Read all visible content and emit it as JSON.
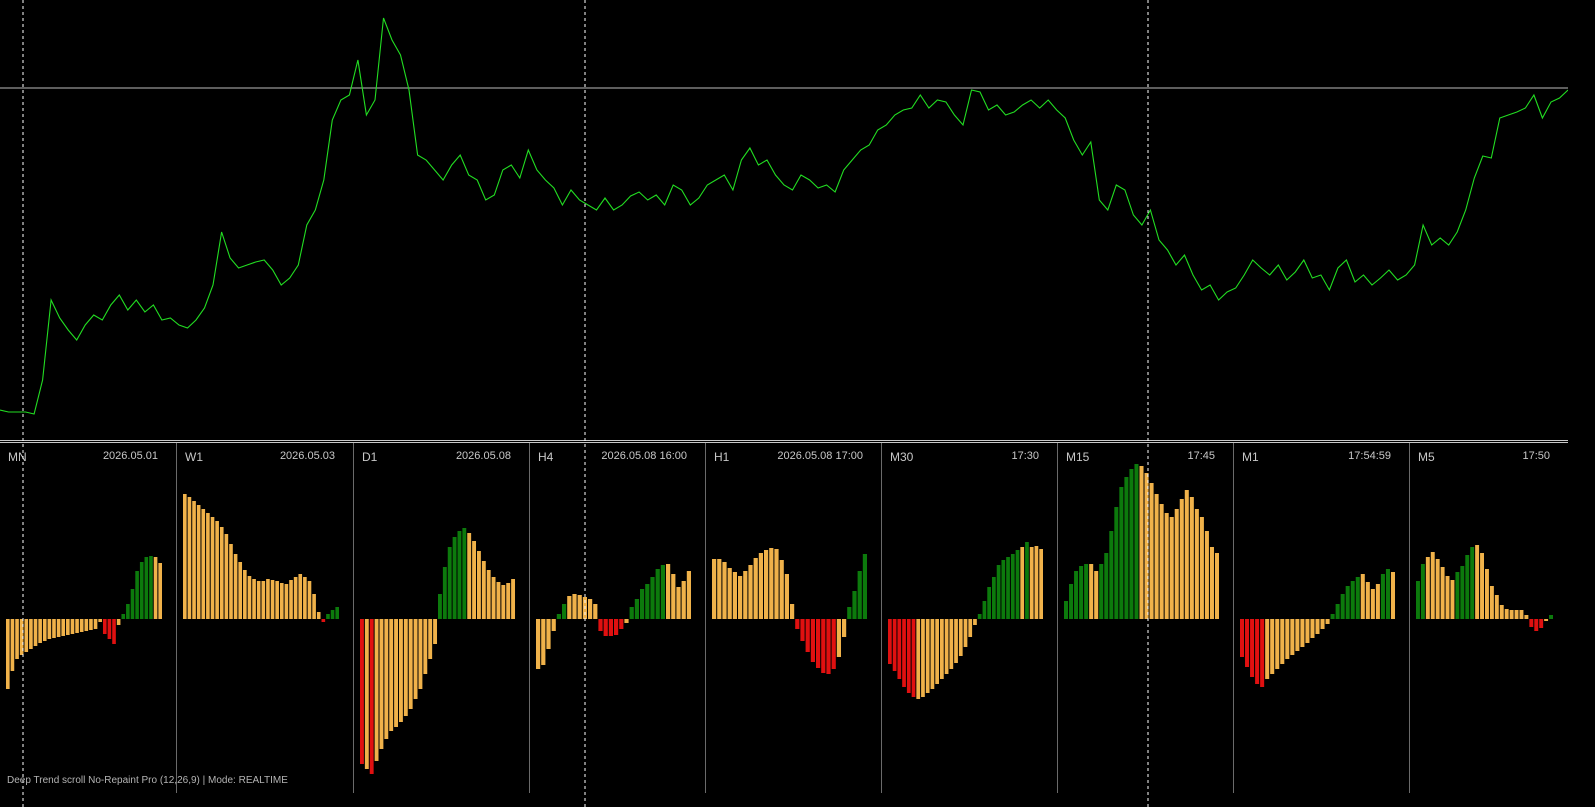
{
  "indicator": {
    "footer": "Deep Trend scroll No-Repaint Pro (12,26,9) | Mode: REALTIME"
  },
  "colors": {
    "background": "#000000",
    "price_line": "#22dd22",
    "bull": "#0c7a0c",
    "neutral": "#f0b24a",
    "bear": "#e01010",
    "grid": "#d0d0d0",
    "text": "#c8c8c8"
  },
  "panels": [
    {
      "timeframe": "MN",
      "date": "2026.05.01"
    },
    {
      "timeframe": "W1",
      "date": "2026.05.03"
    },
    {
      "timeframe": "D1",
      "date": "2026.05.08"
    },
    {
      "timeframe": "H4",
      "date": "2026.05.08 16:00"
    },
    {
      "timeframe": "H1",
      "date": "2026.05.08 17:00"
    },
    {
      "timeframe": "M30",
      "date": "17:30"
    },
    {
      "timeframe": "M15",
      "date": "17:45"
    },
    {
      "timeframe": "M1",
      "date": "17:54:59"
    },
    {
      "timeframe": "M5",
      "date": "17:50"
    }
  ],
  "chart_data": [
    {
      "type": "line",
      "series": [
        {
          "values": [
            410,
            412,
            412,
            412,
            414,
            380,
            300,
            318,
            330,
            340,
            325,
            315,
            320,
            305,
            295,
            310,
            300,
            312,
            305,
            320,
            318,
            325,
            328,
            320,
            308,
            285,
            232,
            258,
            268,
            265,
            262,
            260,
            270,
            285,
            278,
            265,
            225,
            210,
            180,
            120,
            100,
            95,
            60,
            115,
            100,
            18,
            40,
            55,
            90,
            155,
            160,
            170,
            180,
            165,
            155,
            175,
            180,
            200,
            195,
            170,
            165,
            178,
            150,
            170,
            180,
            188,
            205,
            190,
            200,
            205,
            210,
            198,
            210,
            205,
            196,
            192,
            200,
            195,
            205,
            185,
            190,
            205,
            198,
            185,
            180,
            175,
            190,
            160,
            148,
            165,
            160,
            175,
            185,
            190,
            175,
            180,
            188,
            185,
            192,
            170,
            160,
            150,
            145,
            130,
            125,
            115,
            110,
            108,
            95,
            108,
            100,
            102,
            115,
            125,
            90,
            92,
            110,
            105,
            115,
            112,
            105,
            100,
            108,
            100,
            110,
            118,
            140,
            155,
            142,
            200,
            210,
            185,
            190,
            215,
            225,
            210,
            240,
            250,
            265,
            255,
            275,
            290,
            285,
            300,
            292,
            288,
            275,
            260,
            268,
            275,
            265,
            280,
            272,
            260,
            278,
            275,
            290,
            268,
            260,
            282,
            275,
            285,
            278,
            270,
            280,
            275,
            265,
            225,
            245,
            238,
            245,
            232,
            210,
            178,
            156,
            158,
            118,
            115,
            112,
            108,
            95,
            118,
            102,
            98,
            90
          ]
        }
      ]
    },
    {
      "type": "bar",
      "timeframe": "MN",
      "values": [
        -70,
        -52,
        -40,
        -36,
        -33,
        -30,
        -27,
        -24,
        -22,
        -20,
        -19,
        -18,
        -17,
        -16,
        -15,
        -14,
        -13,
        -12,
        -11,
        -10,
        -3,
        -15,
        -20,
        -25,
        -6,
        5,
        15,
        30,
        48,
        57,
        62,
        63,
        62,
        56
      ],
      "colors": [
        "n",
        "n",
        "n",
        "n",
        "n",
        "n",
        "n",
        "n",
        "n",
        "n",
        "n",
        "n",
        "n",
        "n",
        "n",
        "n",
        "n",
        "n",
        "n",
        "n",
        "n",
        "r",
        "r",
        "r",
        "n",
        "g",
        "g",
        "g",
        "g",
        "g",
        "g",
        "g",
        "n",
        "n"
      ]
    },
    {
      "type": "bar",
      "timeframe": "W1",
      "values": [
        125,
        122,
        118,
        114,
        110,
        106,
        102,
        98,
        92,
        85,
        75,
        65,
        57,
        49,
        43,
        40,
        38,
        38,
        40,
        39,
        38,
        36,
        35,
        39,
        42,
        45,
        42,
        38,
        25,
        7,
        -3,
        5,
        9,
        12
      ],
      "colors": [
        "n",
        "n",
        "n",
        "n",
        "n",
        "n",
        "n",
        "n",
        "n",
        "n",
        "n",
        "n",
        "n",
        "n",
        "n",
        "n",
        "n",
        "n",
        "n",
        "n",
        "n",
        "n",
        "n",
        "n",
        "n",
        "n",
        "n",
        "n",
        "n",
        "n",
        "r",
        "g",
        "g",
        "g"
      ]
    },
    {
      "type": "bar",
      "timeframe": "D1",
      "values": [
        -145,
        -150,
        -155,
        -142,
        -130,
        -120,
        -112,
        -108,
        -103,
        -97,
        -90,
        -80,
        -70,
        -55,
        -40,
        -25,
        25,
        52,
        72,
        82,
        88,
        91,
        86,
        78,
        68,
        58,
        49,
        42,
        37,
        34,
        36,
        40
      ],
      "colors": [
        "r",
        "n",
        "r",
        "n",
        "n",
        "n",
        "n",
        "n",
        "n",
        "n",
        "n",
        "n",
        "n",
        "n",
        "n",
        "n",
        "g",
        "g",
        "g",
        "g",
        "g",
        "g",
        "n",
        "n",
        "n",
        "n",
        "n",
        "n",
        "n",
        "n",
        "n",
        "n"
      ]
    },
    {
      "type": "bar",
      "timeframe": "H4",
      "values": [
        -50,
        -46,
        -30,
        -12,
        5,
        15,
        23,
        25,
        24,
        22,
        20,
        15,
        -12,
        -17,
        -17,
        -16,
        -10,
        -4,
        12,
        20,
        30,
        35,
        42,
        50,
        54,
        55,
        45,
        32,
        38,
        48
      ],
      "colors": [
        "n",
        "n",
        "n",
        "n",
        "g",
        "g",
        "n",
        "n",
        "n",
        "n",
        "n",
        "n",
        "r",
        "r",
        "r",
        "r",
        "r",
        "n",
        "g",
        "g",
        "g",
        "g",
        "g",
        "g",
        "g",
        "n",
        "n",
        "n",
        "n",
        "n"
      ]
    },
    {
      "type": "bar",
      "timeframe": "H1",
      "values": [
        60,
        60,
        57,
        51,
        47,
        43,
        48,
        54,
        61,
        66,
        69,
        71,
        70,
        59,
        45,
        15,
        -10,
        -22,
        -33,
        -43,
        -49,
        -54,
        -55,
        -50,
        -38,
        -18,
        12,
        28,
        48,
        65
      ],
      "colors": [
        "n",
        "n",
        "n",
        "n",
        "n",
        "n",
        "n",
        "n",
        "n",
        "n",
        "n",
        "n",
        "n",
        "n",
        "n",
        "n",
        "r",
        "r",
        "r",
        "r",
        "r",
        "r",
        "r",
        "r",
        "n",
        "n",
        "g",
        "g",
        "g",
        "g"
      ]
    },
    {
      "type": "bar",
      "timeframe": "M30",
      "values": [
        -45,
        -52,
        -60,
        -68,
        -74,
        -78,
        -80,
        -78,
        -74,
        -70,
        -65,
        -60,
        -55,
        -50,
        -44,
        -37,
        -28,
        -18,
        -6,
        5,
        18,
        32,
        42,
        54,
        59,
        62,
        65,
        69,
        72,
        77,
        72,
        73,
        70
      ],
      "colors": [
        "r",
        "r",
        "r",
        "r",
        "r",
        "r",
        "n",
        "n",
        "n",
        "n",
        "n",
        "n",
        "n",
        "n",
        "n",
        "n",
        "n",
        "n",
        "n",
        "g",
        "g",
        "g",
        "g",
        "g",
        "g",
        "g",
        "g",
        "g",
        "n",
        "g",
        "n",
        "n",
        "n"
      ]
    },
    {
      "type": "bar",
      "timeframe": "M15",
      "values": [
        18,
        35,
        48,
        53,
        55,
        55,
        48,
        55,
        66,
        88,
        112,
        132,
        142,
        150,
        155,
        153,
        146,
        136,
        125,
        115,
        106,
        102,
        110,
        120,
        129,
        122,
        110,
        102,
        88,
        72,
        66
      ],
      "colors": [
        "g",
        "g",
        "g",
        "g",
        "g",
        "n",
        "n",
        "g",
        "g",
        "g",
        "g",
        "g",
        "g",
        "g",
        "g",
        "n",
        "n",
        "n",
        "n",
        "n",
        "n",
        "n",
        "n",
        "n",
        "n",
        "n",
        "n",
        "n",
        "n",
        "n",
        "n"
      ]
    },
    {
      "type": "bar",
      "timeframe": "M1",
      "values": [
        -38,
        -48,
        -58,
        -65,
        -68,
        -60,
        -55,
        -50,
        -45,
        -40,
        -36,
        -32,
        -28,
        -24,
        -19,
        -15,
        -10,
        -5,
        5,
        15,
        25,
        33,
        38,
        42,
        45,
        37,
        30,
        35,
        45,
        50,
        47
      ],
      "colors": [
        "r",
        "r",
        "r",
        "r",
        "r",
        "n",
        "n",
        "n",
        "n",
        "n",
        "n",
        "n",
        "n",
        "n",
        "n",
        "n",
        "n",
        "n",
        "g",
        "g",
        "g",
        "g",
        "g",
        "g",
        "n",
        "n",
        "n",
        "n",
        "g",
        "g",
        "n"
      ]
    },
    {
      "type": "bar",
      "timeframe": "M5",
      "values": [
        38,
        55,
        62,
        67,
        60,
        52,
        43,
        39,
        47,
        53,
        64,
        72,
        74,
        66,
        50,
        33,
        24,
        14,
        10,
        9,
        9,
        9,
        4,
        -8,
        -12,
        -9,
        -2,
        4
      ],
      "colors": [
        "g",
        "g",
        "n",
        "n",
        "n",
        "n",
        "n",
        "n",
        "g",
        "g",
        "g",
        "g",
        "n",
        "n",
        "n",
        "n",
        "n",
        "n",
        "n",
        "n",
        "n",
        "n",
        "n",
        "r",
        "r",
        "r",
        "n",
        "g"
      ]
    }
  ]
}
